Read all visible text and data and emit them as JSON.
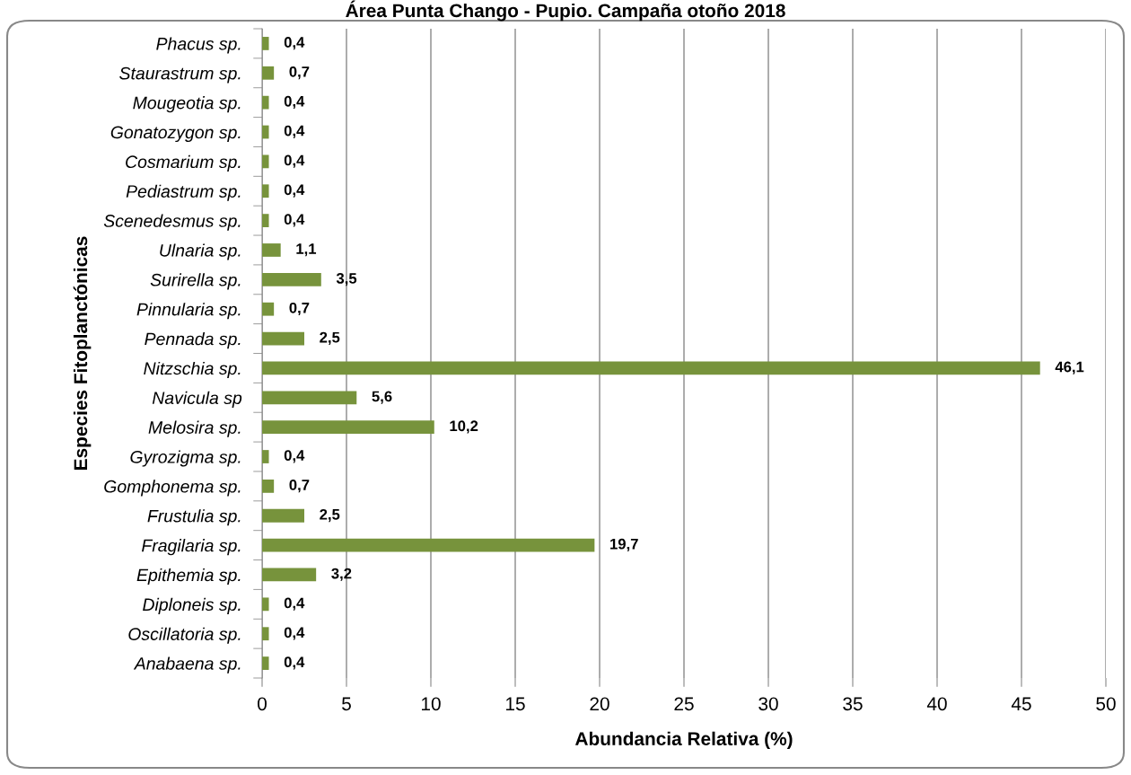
{
  "chart_data": {
    "type": "bar",
    "orientation": "horizontal",
    "title": "Área Punta Chango - Pupio. Campaña otoño 2018",
    "xlabel": "Abundancia Relativa (%)",
    "ylabel": "Especies Fitoplanctónicas",
    "categories": [
      "Phacus sp.",
      "Staurastrum sp.",
      "Mougeotia sp.",
      "Gonatozygon sp.",
      "Cosmarium sp.",
      "Pediastrum sp.",
      "Scenedesmus sp.",
      "Ulnaria sp.",
      "Surirella sp.",
      "Pinnularia sp.",
      "Pennada sp.",
      "Nitzschia sp.",
      "Navicula sp",
      "Melosira sp.",
      "Gyrozigma sp.",
      "Gomphonema sp.",
      "Frustulia sp.",
      "Fragilaria sp.",
      "Epithemia sp.",
      "Diploneis sp.",
      "Oscillatoria sp.",
      "Anabaena sp."
    ],
    "values": [
      0.4,
      0.7,
      0.4,
      0.4,
      0.4,
      0.4,
      0.4,
      1.1,
      3.5,
      0.7,
      2.5,
      46.1,
      5.6,
      10.2,
      0.4,
      0.7,
      2.5,
      19.7,
      3.2,
      0.4,
      0.4,
      0.4
    ],
    "value_labels": [
      "0,4",
      "0,7",
      "0,4",
      "0,4",
      "0,4",
      "0,4",
      "0,4",
      "1,1",
      "3,5",
      "0,7",
      "2,5",
      "46,1",
      "5,6",
      "10,2",
      "0,4",
      "0,7",
      "2,5",
      "19,7",
      "3,2",
      "0,4",
      "0,4",
      "0,4"
    ],
    "color": "#77933c",
    "xlim": [
      0,
      50
    ],
    "xticks": [
      0,
      5,
      10,
      15,
      20,
      25,
      30,
      35,
      40,
      45,
      50
    ],
    "grid": "x",
    "legend": false
  }
}
